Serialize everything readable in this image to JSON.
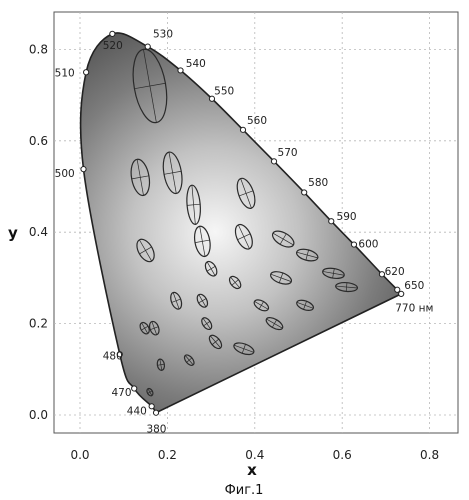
{
  "caption": "Фиг.1",
  "chart_data": {
    "type": "scatter",
    "title": "",
    "xlabel": "x",
    "ylabel": "y",
    "xlim": [
      -0.05,
      0.8
    ],
    "ylim": [
      -0.03,
      0.85
    ],
    "xticks": [
      "0.0",
      "0.2",
      "0.4",
      "0.6",
      "0.8"
    ],
    "yticks": [
      "0.0",
      "0.2",
      "0.4",
      "0.6",
      "0.8"
    ],
    "grid": true,
    "locus": [
      {
        "label": "380",
        "x": 0.174,
        "y": 0.005,
        "lx": 0.175,
        "ly": -0.03
      },
      {
        "label": "440",
        "x": 0.164,
        "y": 0.019,
        "lx": 0.13,
        "ly": 0.01
      },
      {
        "label": "470",
        "x": 0.124,
        "y": 0.058,
        "lx": 0.095,
        "ly": 0.05
      },
      {
        "label": "480",
        "x": 0.091,
        "y": 0.133,
        "lx": 0.075,
        "ly": 0.13
      },
      {
        "label": "500",
        "x": 0.008,
        "y": 0.538,
        "lx": -0.035,
        "ly": 0.53
      },
      {
        "label": "510",
        "x": 0.014,
        "y": 0.75,
        "lx": -0.035,
        "ly": 0.75
      },
      {
        "label": "520",
        "x": 0.074,
        "y": 0.834,
        "lx": 0.075,
        "ly": 0.81
      },
      {
        "label": "530",
        "x": 0.155,
        "y": 0.806,
        "lx": 0.19,
        "ly": 0.835
      },
      {
        "label": "540",
        "x": 0.23,
        "y": 0.754,
        "lx": 0.265,
        "ly": 0.77
      },
      {
        "label": "550",
        "x": 0.302,
        "y": 0.692,
        "lx": 0.33,
        "ly": 0.71
      },
      {
        "label": "560",
        "x": 0.373,
        "y": 0.624,
        "lx": 0.405,
        "ly": 0.645
      },
      {
        "label": "570",
        "x": 0.444,
        "y": 0.555,
        "lx": 0.475,
        "ly": 0.575
      },
      {
        "label": "580",
        "x": 0.513,
        "y": 0.487,
        "lx": 0.545,
        "ly": 0.51
      },
      {
        "label": "590",
        "x": 0.575,
        "y": 0.424,
        "lx": 0.61,
        "ly": 0.435
      },
      {
        "label": "600",
        "x": 0.627,
        "y": 0.373,
        "lx": 0.66,
        "ly": 0.375
      },
      {
        "label": "620",
        "x": 0.691,
        "y": 0.308,
        "lx": 0.72,
        "ly": 0.315
      },
      {
        "label": "650",
        "x": 0.726,
        "y": 0.274,
        "lx": 0.765,
        "ly": 0.285
      },
      {
        "label": "770 нм",
        "x": 0.735,
        "y": 0.265,
        "lx": 0.765,
        "ly": 0.235
      }
    ],
    "ellipses": [
      {
        "x": 0.16,
        "y": 0.72,
        "a": 0.085,
        "b": 0.036,
        "theta": 100
      },
      {
        "x": 0.138,
        "y": 0.52,
        "a": 0.042,
        "b": 0.02,
        "theta": 100
      },
      {
        "x": 0.212,
        "y": 0.53,
        "a": 0.048,
        "b": 0.02,
        "theta": 100
      },
      {
        "x": 0.26,
        "y": 0.46,
        "a": 0.045,
        "b": 0.015,
        "theta": 95
      },
      {
        "x": 0.28,
        "y": 0.38,
        "a": 0.035,
        "b": 0.017,
        "theta": 100
      },
      {
        "x": 0.38,
        "y": 0.485,
        "a": 0.036,
        "b": 0.017,
        "theta": 110
      },
      {
        "x": 0.375,
        "y": 0.39,
        "a": 0.03,
        "b": 0.016,
        "theta": 115
      },
      {
        "x": 0.465,
        "y": 0.385,
        "a": 0.027,
        "b": 0.014,
        "theta": 150
      },
      {
        "x": 0.15,
        "y": 0.36,
        "a": 0.028,
        "b": 0.016,
        "theta": 120
      },
      {
        "x": 0.3,
        "y": 0.32,
        "a": 0.018,
        "b": 0.011,
        "theta": 120
      },
      {
        "x": 0.355,
        "y": 0.29,
        "a": 0.016,
        "b": 0.01,
        "theta": 130
      },
      {
        "x": 0.52,
        "y": 0.35,
        "a": 0.025,
        "b": 0.012,
        "theta": 165
      },
      {
        "x": 0.46,
        "y": 0.3,
        "a": 0.025,
        "b": 0.012,
        "theta": 160
      },
      {
        "x": 0.58,
        "y": 0.31,
        "a": 0.025,
        "b": 0.011,
        "theta": 170
      },
      {
        "x": 0.61,
        "y": 0.28,
        "a": 0.025,
        "b": 0.01,
        "theta": 175
      },
      {
        "x": 0.22,
        "y": 0.25,
        "a": 0.02,
        "b": 0.011,
        "theta": 110
      },
      {
        "x": 0.28,
        "y": 0.25,
        "a": 0.016,
        "b": 0.01,
        "theta": 120
      },
      {
        "x": 0.29,
        "y": 0.2,
        "a": 0.015,
        "b": 0.009,
        "theta": 125
      },
      {
        "x": 0.415,
        "y": 0.24,
        "a": 0.018,
        "b": 0.01,
        "theta": 150
      },
      {
        "x": 0.515,
        "y": 0.24,
        "a": 0.02,
        "b": 0.01,
        "theta": 160
      },
      {
        "x": 0.17,
        "y": 0.19,
        "a": 0.016,
        "b": 0.01,
        "theta": 110
      },
      {
        "x": 0.148,
        "y": 0.19,
        "a": 0.014,
        "b": 0.009,
        "theta": 120
      },
      {
        "x": 0.31,
        "y": 0.16,
        "a": 0.018,
        "b": 0.01,
        "theta": 130
      },
      {
        "x": 0.445,
        "y": 0.2,
        "a": 0.021,
        "b": 0.01,
        "theta": 150
      },
      {
        "x": 0.185,
        "y": 0.11,
        "a": 0.013,
        "b": 0.008,
        "theta": 100
      },
      {
        "x": 0.25,
        "y": 0.12,
        "a": 0.014,
        "b": 0.008,
        "theta": 130
      },
      {
        "x": 0.375,
        "y": 0.145,
        "a": 0.024,
        "b": 0.011,
        "theta": 160
      },
      {
        "x": 0.16,
        "y": 0.05,
        "a": 0.009,
        "b": 0.006,
        "theta": 120
      }
    ]
  }
}
